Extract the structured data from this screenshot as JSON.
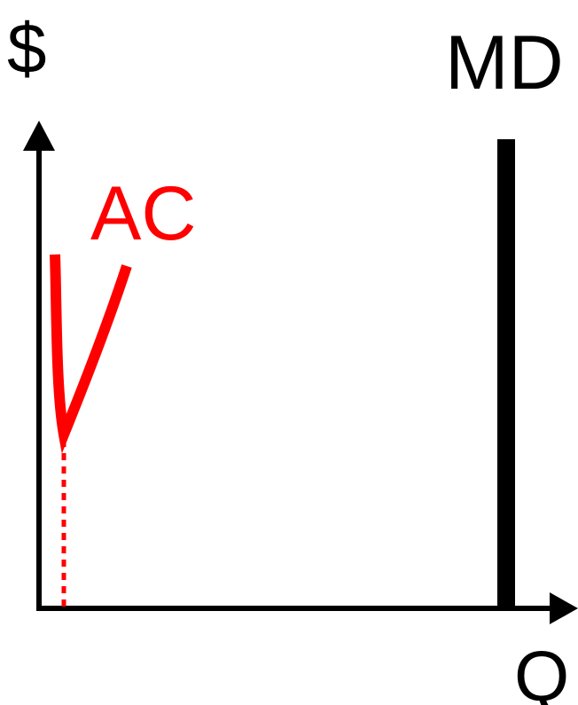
{
  "diagram": {
    "y_axis_label": "$",
    "x_axis_label": "Q",
    "demand_label": "MD",
    "cost_label": "AC"
  },
  "colors": {
    "axes": "#000000",
    "demand_curve": "#000000",
    "cost_curve": "#ff0000",
    "background": "#ffffff"
  }
}
